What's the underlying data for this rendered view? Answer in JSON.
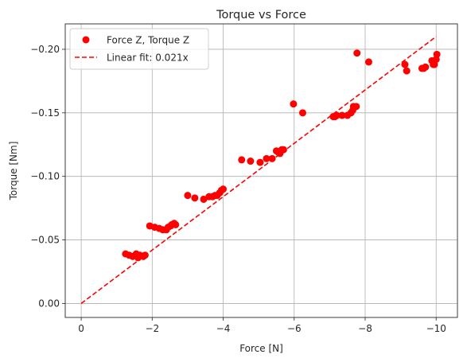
{
  "chart_data": {
    "type": "scatter",
    "title": "Torque vs Force",
    "xlabel": "Force [N]",
    "ylabel": "Torque [Nm]",
    "xlim": [
      0.45,
      -10.6
    ],
    "ylim": [
      0.011,
      -0.22
    ],
    "grid": true,
    "legend_position": "upper-left",
    "x_ticks": [
      0,
      -2,
      -4,
      -6,
      -8,
      -10
    ],
    "x_tick_labels": [
      "0",
      "−2",
      "−4",
      "−6",
      "−8",
      "−10"
    ],
    "y_ticks": [
      0.0,
      -0.05,
      -0.1,
      -0.15,
      -0.2
    ],
    "y_tick_labels": [
      "0.00",
      "−0.05",
      "−0.10",
      "−0.15",
      "−0.20"
    ],
    "series": [
      {
        "name": "Force Z, Torque Z",
        "kind": "scatter",
        "color": "#ff0000",
        "points": [
          [
            -1.25,
            -0.039
          ],
          [
            -1.35,
            -0.038
          ],
          [
            -1.45,
            -0.037
          ],
          [
            -1.55,
            -0.039
          ],
          [
            -1.6,
            -0.036
          ],
          [
            -1.65,
            -0.038
          ],
          [
            -1.75,
            -0.037
          ],
          [
            -1.8,
            -0.038
          ],
          [
            -1.93,
            -0.061
          ],
          [
            -2.07,
            -0.06
          ],
          [
            -2.2,
            -0.059
          ],
          [
            -2.3,
            -0.058
          ],
          [
            -2.4,
            -0.058
          ],
          [
            -2.45,
            -0.06
          ],
          [
            -2.52,
            -0.061
          ],
          [
            -2.55,
            -0.062
          ],
          [
            -2.62,
            -0.063
          ],
          [
            -2.66,
            -0.062
          ],
          [
            -3.0,
            -0.085
          ],
          [
            -3.2,
            -0.083
          ],
          [
            -3.45,
            -0.082
          ],
          [
            -3.6,
            -0.084
          ],
          [
            -3.7,
            -0.084
          ],
          [
            -3.77,
            -0.085
          ],
          [
            -3.83,
            -0.085
          ],
          [
            -3.9,
            -0.087
          ],
          [
            -3.95,
            -0.089
          ],
          [
            -4.0,
            -0.09
          ],
          [
            -4.52,
            -0.113
          ],
          [
            -4.77,
            -0.112
          ],
          [
            -5.04,
            -0.111
          ],
          [
            -5.22,
            -0.114
          ],
          [
            -5.38,
            -0.114
          ],
          [
            -5.5,
            -0.12
          ],
          [
            -5.55,
            -0.119
          ],
          [
            -5.6,
            -0.118
          ],
          [
            -5.65,
            -0.121
          ],
          [
            -5.7,
            -0.121
          ],
          [
            -5.98,
            -0.157
          ],
          [
            -6.24,
            -0.15
          ],
          [
            -7.1,
            -0.147
          ],
          [
            -7.15,
            -0.147
          ],
          [
            -7.2,
            -0.148
          ],
          [
            -7.35,
            -0.148
          ],
          [
            -7.5,
            -0.148
          ],
          [
            -7.6,
            -0.15
          ],
          [
            -7.65,
            -0.152
          ],
          [
            -7.67,
            -0.155
          ],
          [
            -7.75,
            -0.155
          ],
          [
            -7.77,
            -0.197
          ],
          [
            -8.1,
            -0.19
          ],
          [
            -9.12,
            -0.188
          ],
          [
            -9.17,
            -0.183
          ],
          [
            -9.6,
            -0.185
          ],
          [
            -9.65,
            -0.185
          ],
          [
            -9.7,
            -0.186
          ],
          [
            -9.88,
            -0.191
          ],
          [
            -9.92,
            -0.188
          ],
          [
            -9.95,
            -0.188
          ],
          [
            -10.0,
            -0.192
          ],
          [
            -10.02,
            -0.196
          ]
        ]
      },
      {
        "name": "Linear fit: 0.021x",
        "kind": "line",
        "style": "dashed",
        "color": "#ff0000",
        "x": [
          0.0,
          -10.0
        ],
        "y": [
          0.0,
          -0.21
        ]
      }
    ]
  }
}
